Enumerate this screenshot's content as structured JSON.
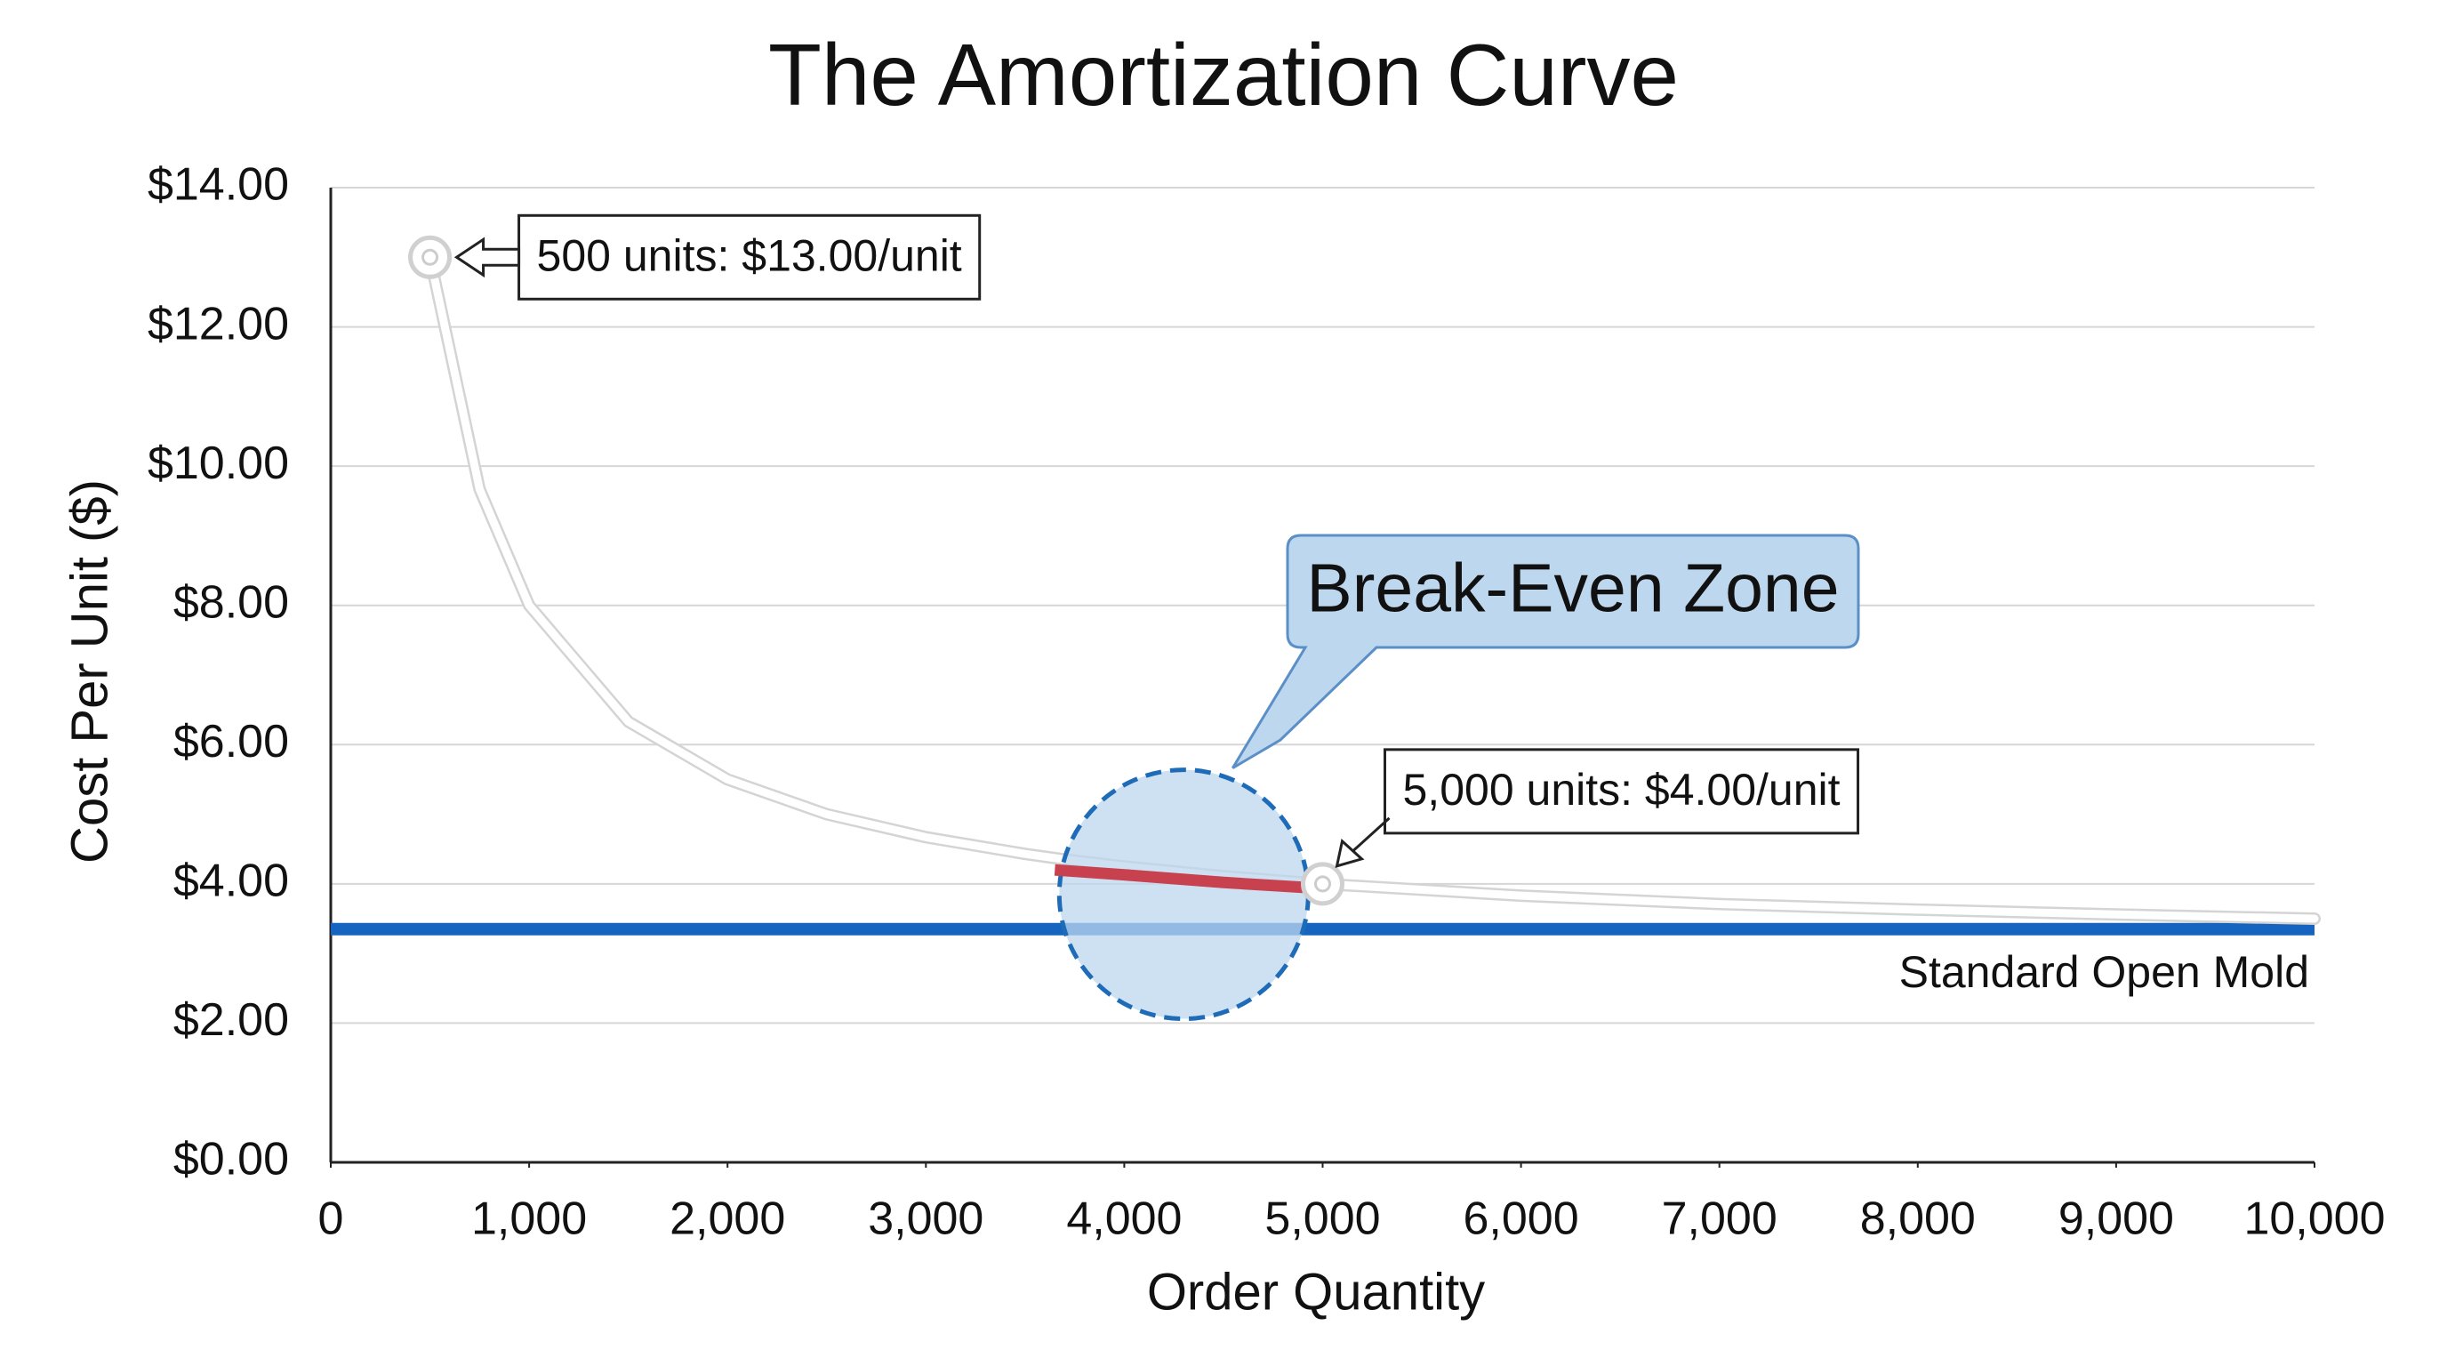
{
  "chart_data": {
    "type": "line",
    "title": "The Amortization Curve",
    "x_label": "Order Quantity",
    "y_label": "Cost Per Unit ($)",
    "xlim": [
      0,
      10000
    ],
    "ylim": [
      0,
      14
    ],
    "xticks": [
      0,
      {
        "value": 1000,
        "label": "1,000"
      },
      {
        "value": 2000,
        "label": "2,000"
      },
      {
        "value": 3000,
        "label": "3,000"
      },
      {
        "value": 4000,
        "label": "4,000"
      },
      {
        "value": 5000,
        "label": "5,000"
      },
      {
        "value": 6000,
        "label": "6,000"
      },
      {
        "value": 7000,
        "label": "7,000"
      },
      {
        "value": 8000,
        "label": "8,000"
      },
      {
        "value": 9000,
        "label": "9,000"
      },
      {
        "value": 10000,
        "label": "10,000"
      }
    ],
    "yticks": [
      {
        "value": 0,
        "label": "$0.00"
      },
      {
        "value": 2,
        "label": "$2.00"
      },
      {
        "value": 4,
        "label": "$4.00"
      },
      {
        "value": 6,
        "label": "$6.00"
      },
      {
        "value": 8,
        "label": "$8.00"
      },
      {
        "value": 10,
        "label": "$10.00"
      },
      {
        "value": 12,
        "label": "$12.00"
      },
      {
        "value": 14,
        "label": "$14.00"
      }
    ],
    "grid": true,
    "curve": {
      "color": "#ffffff",
      "x": [
        500,
        750,
        1000,
        1500,
        2000,
        2500,
        3000,
        3500,
        3700,
        4000,
        4500,
        4900,
        5000,
        6000,
        7000,
        8000,
        9000,
        10000
      ],
      "values": [
        13,
        9.67,
        8,
        6.33,
        5.5,
        5,
        4.67,
        4.43,
        4.35,
        4.25,
        4.11,
        4.02,
        4,
        3.83,
        3.71,
        3.63,
        3.56,
        3.5
      ]
    },
    "highlight": {
      "color": "#c8414f",
      "x": [
        3650,
        4000,
        4500,
        4900
      ],
      "values": [
        4.2,
        4.13,
        4.02,
        3.95
      ]
    },
    "reference_line": {
      "label": "Standard Open Mold",
      "value": 3.35,
      "color": "#1565c0"
    },
    "annotations": [
      {
        "text": "500 units: $13.00/unit",
        "x": 500,
        "y": 13
      },
      {
        "text": "5,000 units: $4.00/unit",
        "x": 5000,
        "y": 4
      }
    ],
    "zone": {
      "label": "Break-Even Zone",
      "x": 4300,
      "y": 3.85,
      "color": "#bdd7ee"
    }
  }
}
